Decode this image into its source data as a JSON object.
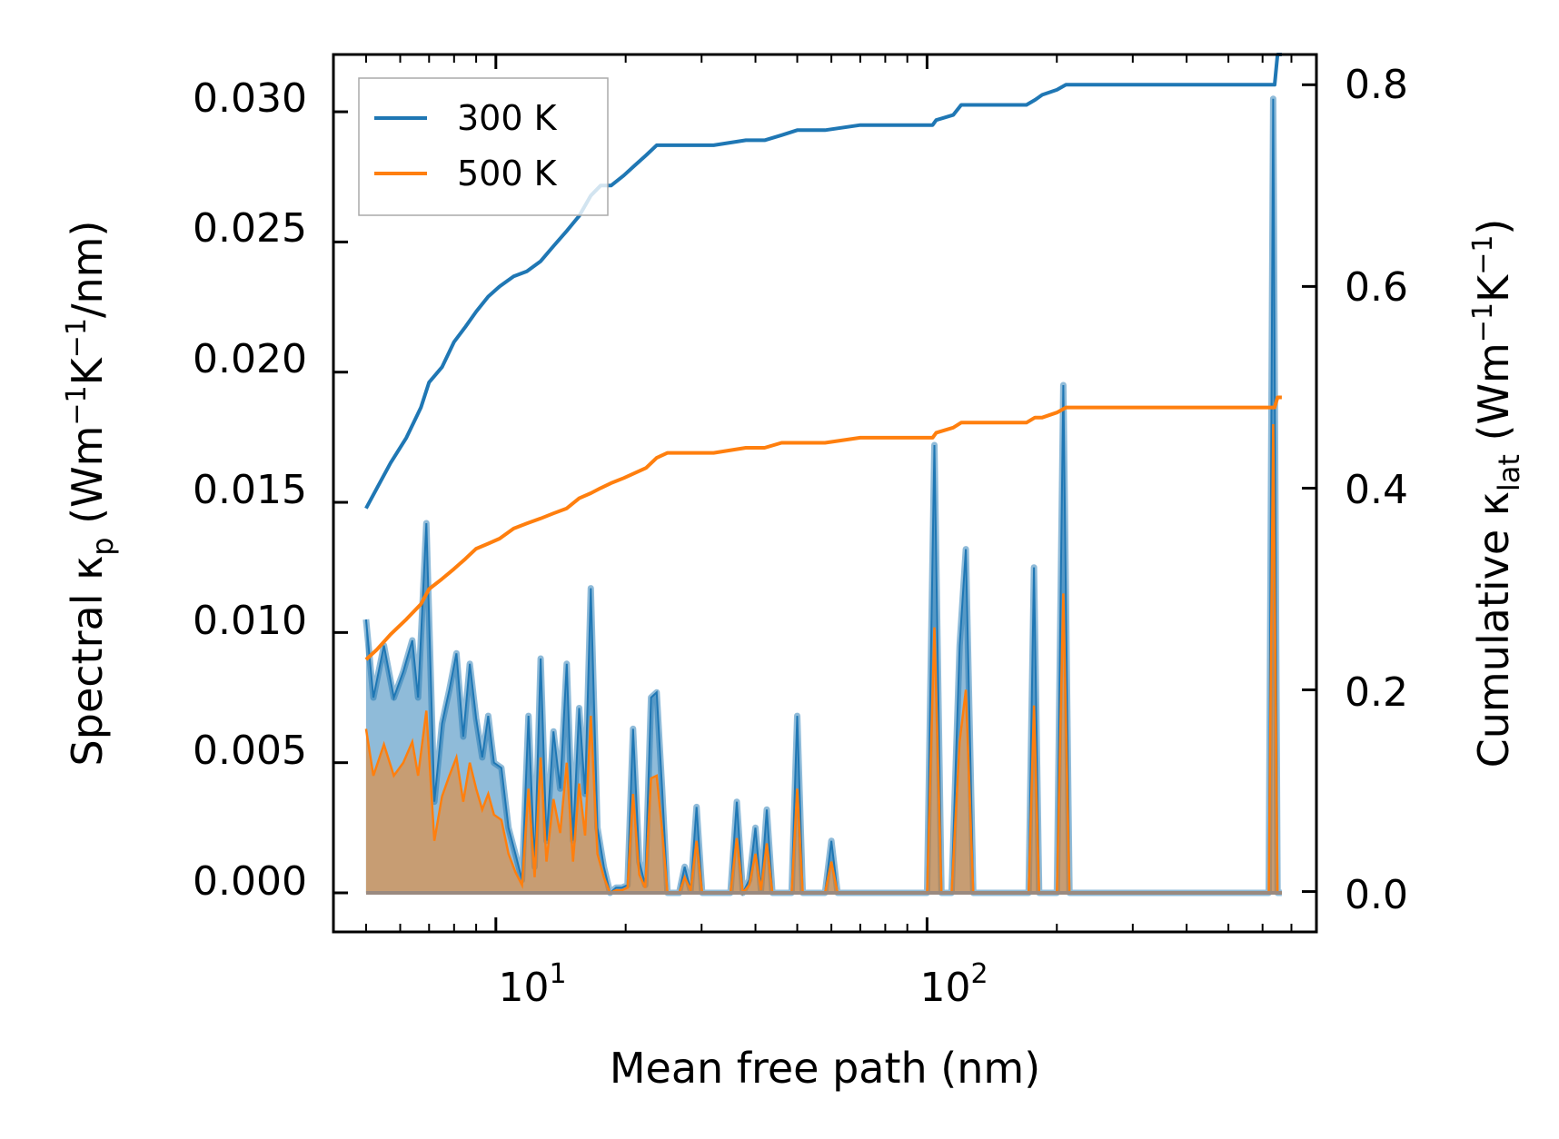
{
  "chart_data": {
    "type": "line",
    "title": "",
    "xlabel": "Mean free path (nm)",
    "ylabel": "Spectral κ",
    "ylabel_sub": "p",
    "ylabel_units": "(Wm",
    "ylabel_units_sup1": "−1",
    "ylabel_units_mid": "K",
    "ylabel_units_sup2": "−1",
    "ylabel_units_end": "/nm)",
    "y2label": "Cumulative κ",
    "y2label_sub": "lat",
    "y2label_units": "(Wm",
    "y2label_units_sup1": "−1",
    "y2label_units_mid": "K",
    "y2label_units_sup2": "−1",
    "y2label_units_end": ")",
    "xscale": "log",
    "xlim": [
      4.2,
      800
    ],
    "ylim": [
      -0.0015,
      0.0322
    ],
    "y2lim": [
      -0.04,
      0.83
    ],
    "yticks": [
      "0.000",
      "0.005",
      "0.010",
      "0.015",
      "0.020",
      "0.025",
      "0.030"
    ],
    "y2ticks": [
      "0.0",
      "0.2",
      "0.4",
      "0.6",
      "0.8"
    ],
    "xtick_base": "10",
    "xtick_exponents": [
      "1",
      "2"
    ],
    "legend": {
      "position": "top-left",
      "entries": [
        "300 K",
        "500 K"
      ]
    },
    "colors": {
      "300 K": "#1f77b4",
      "500 K": "#ff7f0e",
      "fill_300": "#1f77b4",
      "fill_500": "#ff7f0e"
    },
    "spectral_x": [
      5.0,
      5.2,
      5.5,
      5.8,
      6.1,
      6.4,
      6.6,
      6.9,
      7.2,
      7.5,
      7.8,
      8.1,
      8.4,
      8.7,
      9.0,
      9.3,
      9.6,
      9.9,
      10.3,
      10.7,
      11.1,
      11.5,
      11.9,
      12.3,
      12.7,
      13.1,
      13.6,
      14.1,
      14.6,
      15.1,
      15.6,
      16.1,
      16.6,
      17.2,
      17.8,
      18.4,
      19.0,
      19.6,
      20.2,
      20.8,
      21.5,
      22.2,
      22.9,
      23.6,
      24.3,
      25.0,
      25.8,
      26.6,
      27.4,
      28.3,
      29.2,
      30.1,
      31.0,
      35.0,
      36.2,
      37.4,
      38.7,
      40.0,
      41.2,
      42.5,
      43.8,
      45.0,
      48.5,
      50.0,
      51.5,
      58.0,
      60.0,
      62.0,
      100.0,
      104.0,
      108.0,
      114.0,
      119.0,
      123.0,
      128.0,
      172.0,
      177.0,
      182.0,
      200.0,
      207.0,
      214.0,
      620.0,
      635.0,
      650.0,
      660.0,
      665.0
    ],
    "spectral_300": [
      0.0105,
      0.0075,
      0.0095,
      0.0075,
      0.0085,
      0.0097,
      0.0075,
      0.0142,
      0.0035,
      0.0065,
      0.0078,
      0.0092,
      0.006,
      0.0088,
      0.0067,
      0.0052,
      0.0068,
      0.005,
      0.0048,
      0.0025,
      0.0015,
      0.0005,
      0.0068,
      0.001,
      0.009,
      0.002,
      0.0062,
      0.004,
      0.0088,
      0.002,
      0.0071,
      0.0038,
      0.0117,
      0.0025,
      0.001,
      0.0,
      0.0002,
      0.0002,
      0.0003,
      0.0063,
      0.0012,
      0.0003,
      0.0075,
      0.0077,
      0.004,
      0.0,
      0.0,
      0.0,
      0.001,
      0.0001,
      0.0033,
      0.0,
      0.0,
      0.0,
      0.0035,
      0.0,
      0.0005,
      0.0025,
      0.0001,
      0.0032,
      0.0,
      0.0,
      0.0,
      0.0068,
      0.0,
      0.0,
      0.002,
      0.0,
      0.0,
      0.0172,
      0.0,
      0.0,
      0.0095,
      0.0132,
      0.0,
      0.0,
      0.0125,
      0.0,
      0.0,
      0.0195,
      0.0,
      0.0,
      0.0305,
      0.0,
      0.0,
      0.0
    ],
    "spectral_500": [
      0.0063,
      0.0045,
      0.0057,
      0.0045,
      0.005,
      0.0058,
      0.0045,
      0.007,
      0.002,
      0.0037,
      0.0045,
      0.0052,
      0.0035,
      0.005,
      0.004,
      0.0032,
      0.0038,
      0.003,
      0.0028,
      0.0015,
      0.0008,
      0.0003,
      0.004,
      0.0006,
      0.0052,
      0.0012,
      0.0036,
      0.0023,
      0.005,
      0.0012,
      0.0042,
      0.0022,
      0.0068,
      0.0015,
      0.0006,
      0.0,
      0.0001,
      0.0001,
      0.0002,
      0.0038,
      0.0007,
      0.0002,
      0.0044,
      0.0045,
      0.0024,
      0.0,
      0.0,
      0.0,
      0.0006,
      0.0001,
      0.002,
      0.0,
      0.0,
      0.0,
      0.0021,
      0.0,
      0.0003,
      0.0015,
      0.0001,
      0.0019,
      0.0,
      0.0,
      0.0,
      0.004,
      0.0,
      0.0,
      0.0012,
      0.0,
      0.0,
      0.0102,
      0.0,
      0.0,
      0.0058,
      0.0078,
      0.0,
      0.0,
      0.0072,
      0.0,
      0.0,
      0.0115,
      0.0,
      0.0,
      0.018,
      0.0,
      0.0,
      0.0
    ],
    "cumulative_x": [
      5.0,
      5.3,
      5.7,
      6.2,
      6.7,
      7.0,
      7.5,
      8.0,
      8.5,
      9.0,
      9.6,
      10.2,
      11.0,
      11.8,
      12.7,
      13.6,
      14.6,
      15.6,
      16.6,
      17.5,
      18.5,
      19.8,
      21.0,
      22.3,
      23.6,
      25.0,
      28.0,
      32.0,
      38.0,
      42.0,
      46.0,
      50.0,
      58.0,
      70.0,
      90.0,
      103.0,
      105.0,
      115.0,
      120.0,
      125.0,
      170.0,
      178.0,
      185.0,
      200.0,
      210.0,
      300.0,
      500.0,
      640.0,
      650.0,
      665.0
    ],
    "cumulative_300": [
      0.38,
      0.4,
      0.425,
      0.45,
      0.48,
      0.505,
      0.52,
      0.545,
      0.56,
      0.575,
      0.59,
      0.6,
      0.61,
      0.615,
      0.625,
      0.64,
      0.655,
      0.67,
      0.69,
      0.7,
      0.7,
      0.71,
      0.72,
      0.73,
      0.74,
      0.74,
      0.74,
      0.74,
      0.745,
      0.745,
      0.75,
      0.755,
      0.755,
      0.76,
      0.76,
      0.76,
      0.765,
      0.77,
      0.78,
      0.78,
      0.78,
      0.785,
      0.79,
      0.795,
      0.8,
      0.8,
      0.8,
      0.8,
      0.83,
      0.83
    ],
    "cumulative_500": [
      0.23,
      0.24,
      0.255,
      0.27,
      0.285,
      0.3,
      0.31,
      0.32,
      0.33,
      0.34,
      0.345,
      0.35,
      0.36,
      0.365,
      0.37,
      0.375,
      0.38,
      0.39,
      0.395,
      0.4,
      0.405,
      0.41,
      0.415,
      0.42,
      0.43,
      0.435,
      0.435,
      0.435,
      0.44,
      0.44,
      0.445,
      0.445,
      0.445,
      0.45,
      0.45,
      0.45,
      0.455,
      0.46,
      0.465,
      0.465,
      0.465,
      0.47,
      0.47,
      0.475,
      0.48,
      0.48,
      0.48,
      0.48,
      0.49,
      0.49
    ]
  }
}
